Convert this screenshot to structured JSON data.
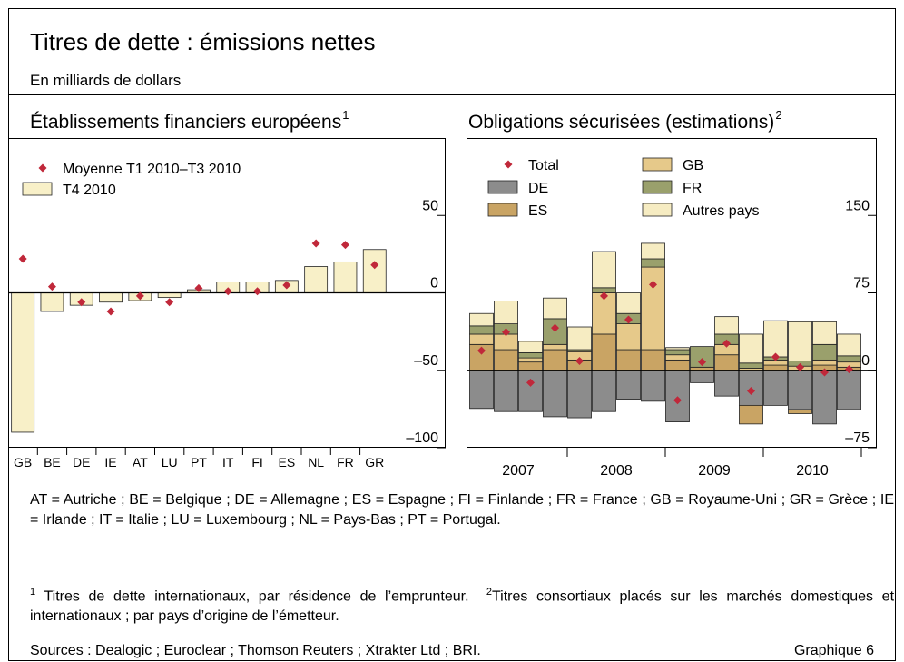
{
  "header": {
    "title": "Titres de dette : émissions nettes",
    "subtitle": "En milliards de dollars"
  },
  "chart_data": [
    {
      "type": "bar",
      "title": "Établissements financiers européens",
      "title_note": "1",
      "categories": [
        "GB",
        "BE",
        "DE",
        "IE",
        "AT",
        "LU",
        "PT",
        "IT",
        "FI",
        "ES",
        "NL",
        "FR",
        "GR"
      ],
      "series": [
        {
          "name": "Moyenne T1 2010–T3 2010",
          "type": "scatter",
          "color": "#c0283a",
          "values": [
            22,
            4,
            -6,
            -12,
            -2,
            -6,
            3,
            1,
            1,
            5,
            32,
            31,
            18
          ]
        },
        {
          "name": "T4 2010",
          "type": "bar",
          "color": "#f8f0c8",
          "values": [
            -90,
            -12,
            -8,
            -6,
            -5,
            -3,
            2,
            7,
            7,
            8,
            17,
            20,
            28
          ]
        }
      ],
      "ylim": [
        -100,
        100
      ],
      "yticks": [
        {
          "value": -100,
          "label": "–100"
        },
        {
          "value": -50,
          "label": "–50"
        },
        0,
        50
      ]
    },
    {
      "type": "stacked_bar",
      "title": "Obligations sécurisées (estimations)",
      "title_note": "2",
      "year_labels": [
        "2007",
        "2008",
        "2009",
        "2010"
      ],
      "series": [
        {
          "name": "Total",
          "type": "scatter",
          "color": "#c0283a",
          "values": [
            19,
            37,
            -12,
            41,
            9,
            72,
            49,
            83,
            -29,
            8,
            26,
            -20,
            13,
            3,
            -2,
            1
          ]
        },
        {
          "name": "DE",
          "type": "bar",
          "color": "#8c8c8c",
          "values": [
            -37,
            -40,
            -40,
            -45,
            -46,
            -40,
            -28,
            -30,
            -50,
            -12,
            -25,
            -34,
            -34,
            -38,
            -52,
            -38
          ]
        },
        {
          "name": "ES",
          "type": "bar",
          "color": "#c9a464",
          "values": [
            25,
            20,
            8,
            20,
            10,
            35,
            20,
            20,
            10,
            3,
            15,
            -18,
            5,
            -4,
            5,
            3
          ]
        },
        {
          "name": "GB",
          "type": "bar",
          "color": "#e6c98a",
          "values": [
            10,
            15,
            4,
            5,
            8,
            40,
            25,
            80,
            5,
            0,
            10,
            2,
            5,
            4,
            5,
            5
          ]
        },
        {
          "name": "FR",
          "type": "bar",
          "color": "#9aa06c",
          "values": [
            8,
            10,
            5,
            25,
            2,
            5,
            10,
            8,
            5,
            20,
            10,
            5,
            3,
            5,
            15,
            6
          ]
        },
        {
          "name": "Autres pays",
          "type": "bar",
          "color": "#f6ecc2",
          "values": [
            12,
            22,
            11,
            20,
            22,
            35,
            20,
            15,
            2,
            0,
            17,
            28,
            35,
            38,
            22,
            21
          ]
        }
      ],
      "ylim": [
        -75,
        225
      ],
      "yticks": [
        {
          "value": -75,
          "label": "–75"
        },
        0,
        75,
        150
      ]
    }
  ],
  "notes": {
    "abbreviations": "AT = Autriche ; BE = Belgique ; DE = Allemagne ; ES = Espagne ; FI = Finlande ; FR = France ; GB = Royaume-Uni ; GR = Grèce ; IE = Irlande ; IT = Italie ; LU = Luxembourg ; NL = Pays-Bas ; PT = Portugal.",
    "footnotes": [
      {
        "mark": "1",
        "text": "Titres de dette internationaux, par résidence de l’emprunteur."
      },
      {
        "mark": "2",
        "text": "Titres consortiaux placés sur les marchés domestiques et internationaux ; par pays d’origine de l’émetteur."
      }
    ],
    "sources": "Sources : Dealogic ; Euroclear ; Thomson Reuters ; Xtrakter Ltd ; BRI.",
    "figure_label": "Graphique 6"
  }
}
